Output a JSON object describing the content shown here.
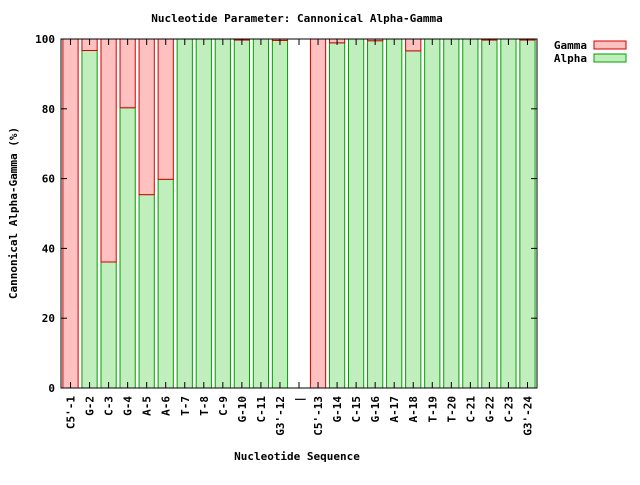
{
  "chart_data": {
    "type": "bar",
    "stacked": true,
    "title": "Nucleotide Parameter: Cannonical Alpha-Gamma",
    "xlabel": "Nucleotide Sequence",
    "ylabel": "Cannonical Alpha-Gamma (%)",
    "ylim": [
      0,
      100
    ],
    "yticks": [
      0,
      20,
      40,
      60,
      80,
      100
    ],
    "grid": false,
    "legend_position": "top-right",
    "categories": [
      "C5'-1",
      "G-2",
      "C-3",
      "G-4",
      "A-5",
      "A-6",
      "T-7",
      "T-8",
      "C-9",
      "G-10",
      "C-11",
      "G3'-12",
      "|",
      "C5'-13",
      "G-14",
      "C-15",
      "G-16",
      "A-17",
      "A-18",
      "T-19",
      "T-20",
      "C-21",
      "G-22",
      "C-23",
      "G3'-24"
    ],
    "series": [
      {
        "name": "Alpha",
        "color": "#c0eebc",
        "stroke": "#00a000",
        "values": [
          0,
          96.7,
          36.1,
          80.3,
          55.4,
          59.8,
          100,
          100,
          100,
          99.7,
          100,
          99.6,
          null,
          0,
          98.9,
          100,
          99.5,
          100,
          96.6,
          100,
          100,
          100,
          99.7,
          100,
          99.7
        ]
      },
      {
        "name": "Gamma",
        "color": "#ffc0c0",
        "stroke": "#d00000",
        "values": [
          100,
          3.3,
          63.9,
          19.7,
          44.6,
          40.2,
          0,
          0,
          0,
          0.3,
          0,
          0.4,
          null,
          100,
          1.1,
          0,
          0.5,
          0,
          3.4,
          0,
          0,
          0,
          0.3,
          0,
          0.3
        ]
      }
    ]
  }
}
